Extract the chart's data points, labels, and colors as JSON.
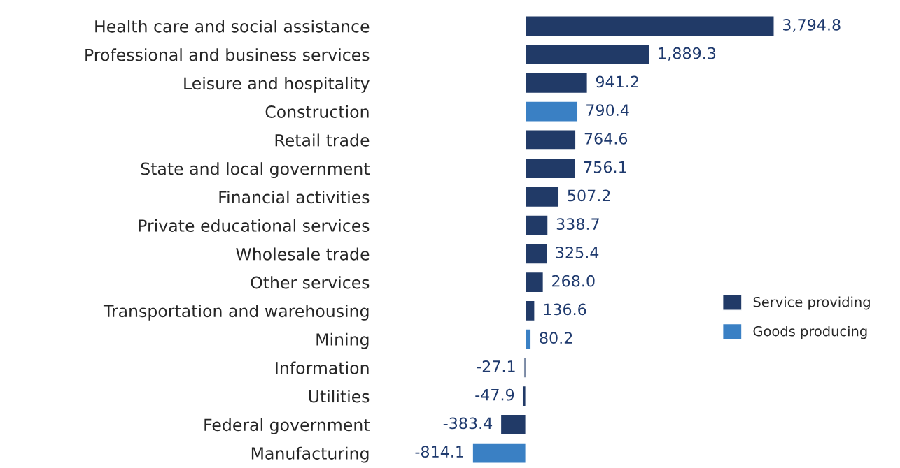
{
  "chart_data": {
    "type": "bar",
    "orientation": "horizontal",
    "legend": "right",
    "grid": false,
    "tick_labels": "y",
    "categories": [
      "Health care and social assistance",
      "Professional and business services",
      "Leisure and hospitality",
      "Construction",
      "Retail trade",
      "State and local government",
      "Financial activities",
      "Private educational services",
      "Wholesale trade",
      "Other services",
      "Transportation and warehousing",
      "Mining",
      "Information",
      "Utilities",
      "Federal government",
      "Manufacturing"
    ],
    "series": [
      {
        "name": "Service providing",
        "color": "#213a67",
        "values": [
          3794.8,
          1889.3,
          941.2,
          null,
          764.6,
          756.1,
          507.2,
          338.7,
          325.4,
          268.0,
          136.6,
          null,
          -27.1,
          -47.9,
          -383.4,
          null
        ],
        "value_labels": [
          "3,794.8",
          "1,889.3",
          "941.2",
          null,
          "764.6",
          "756.1",
          "507.2",
          "338.7",
          "325.4",
          "268.0",
          "136.6",
          null,
          "-27.1",
          "-47.9",
          "-383.4",
          null
        ]
      },
      {
        "name": "Goods producing",
        "color": "#3a80c4",
        "values": [
          null,
          null,
          null,
          790.4,
          null,
          null,
          null,
          null,
          null,
          null,
          null,
          80.2,
          null,
          null,
          null,
          -814.1
        ],
        "value_labels": [
          null,
          null,
          null,
          "790.4",
          null,
          null,
          null,
          null,
          null,
          null,
          null,
          "80.2",
          null,
          null,
          null,
          "-814.1"
        ]
      }
    ]
  }
}
